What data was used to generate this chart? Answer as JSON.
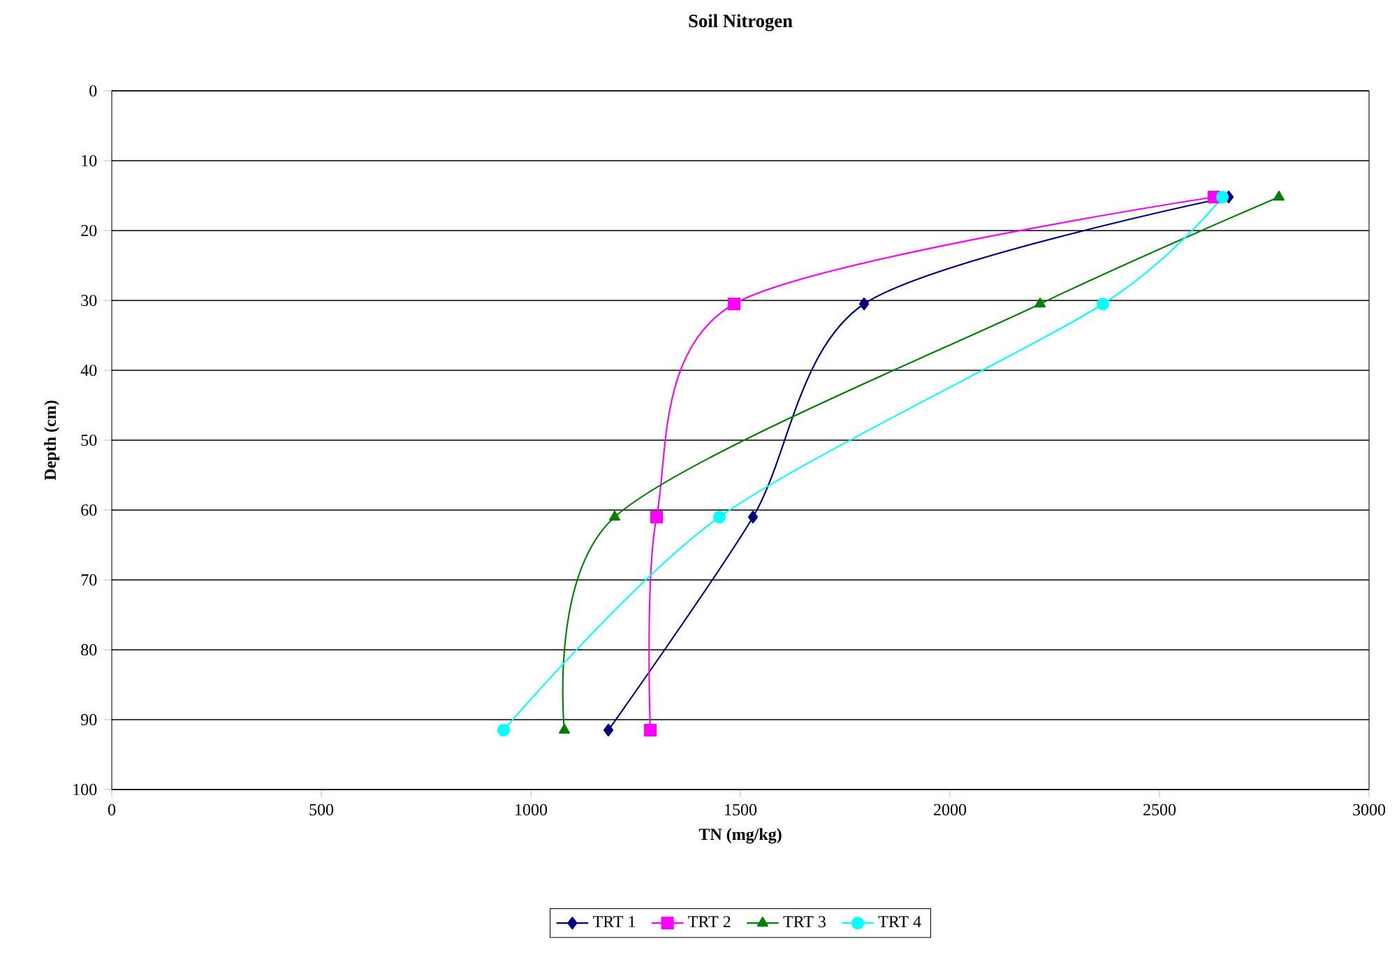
{
  "chart_data": {
    "type": "line",
    "title": "Soil Nitrogen",
    "xlabel": "TN (mg/kg)",
    "ylabel": "Depth (cm)",
    "xlim": [
      0,
      3000
    ],
    "xticks": [
      0,
      500,
      1000,
      1500,
      2000,
      2500,
      3000
    ],
    "ylim": [
      100,
      0
    ],
    "yticks": [
      0,
      10,
      20,
      30,
      40,
      50,
      60,
      70,
      80,
      90,
      100
    ],
    "grid": "y",
    "legend": "bottom",
    "line_style": "solid",
    "series": [
      {
        "name": "TRT 1",
        "color": "#000080",
        "marker": "diamond",
        "x": [
          2665,
          1795,
          1530,
          1185
        ],
        "values": [
          15.2,
          30.5,
          61,
          91.5
        ]
      },
      {
        "name": "TRT 2",
        "color": "#ff00ff",
        "marker": "square",
        "x": [
          2630,
          1485,
          1300,
          1285
        ],
        "values": [
          15.2,
          30.5,
          61,
          91.5
        ]
      },
      {
        "name": "TRT 3",
        "color": "#008000",
        "marker": "triangle",
        "x": [
          2785,
          2215,
          1200,
          1080
        ],
        "values": [
          15.2,
          30.5,
          61,
          91.5
        ]
      },
      {
        "name": "TRT 4",
        "color": "#00ffff",
        "marker": "circle",
        "x": [
          2650,
          2365,
          1450,
          935
        ],
        "values": [
          15.2,
          30.5,
          61,
          91.5
        ]
      }
    ]
  }
}
